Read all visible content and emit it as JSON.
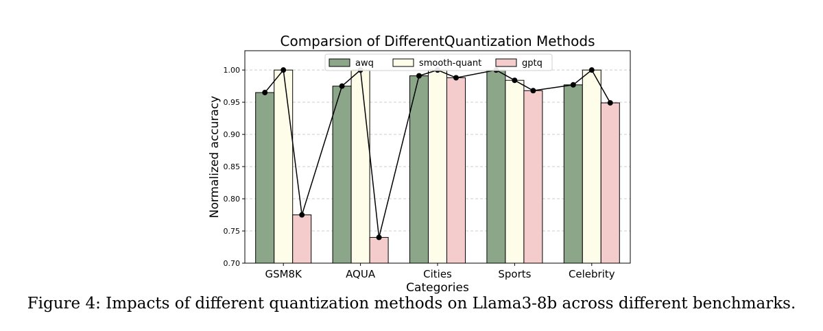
{
  "caption": "Figure 4: Impacts of different quantization methods on Llama3-8b across different benchmarks.",
  "chart_data": {
    "type": "bar",
    "title": "Comparsion of DifferentQuantization Methods",
    "xlabel": "Categories",
    "ylabel": "Normalized accuracy",
    "categories": [
      "GSM8K",
      "AQUA",
      "Cities",
      "Sports",
      "Celebrity"
    ],
    "ylim": [
      0.7,
      1.03
    ],
    "yticks": [
      "0.70",
      "0.75",
      "0.80",
      "0.85",
      "0.90",
      "0.95",
      "1.00"
    ],
    "grid": true,
    "legend_position": "top-center",
    "series": [
      {
        "name": "awq",
        "color": "#8ca68a",
        "values": [
          0.965,
          0.975,
          0.991,
          1.0,
          0.977
        ]
      },
      {
        "name": "smooth-quant",
        "color": "#fefdea",
        "values": [
          1.0,
          1.0,
          1.0,
          0.984,
          1.0
        ]
      },
      {
        "name": "gptq",
        "color": "#f5cccc",
        "values": [
          0.775,
          0.74,
          0.988,
          0.968,
          0.949
        ]
      }
    ],
    "connecting_line": true
  }
}
